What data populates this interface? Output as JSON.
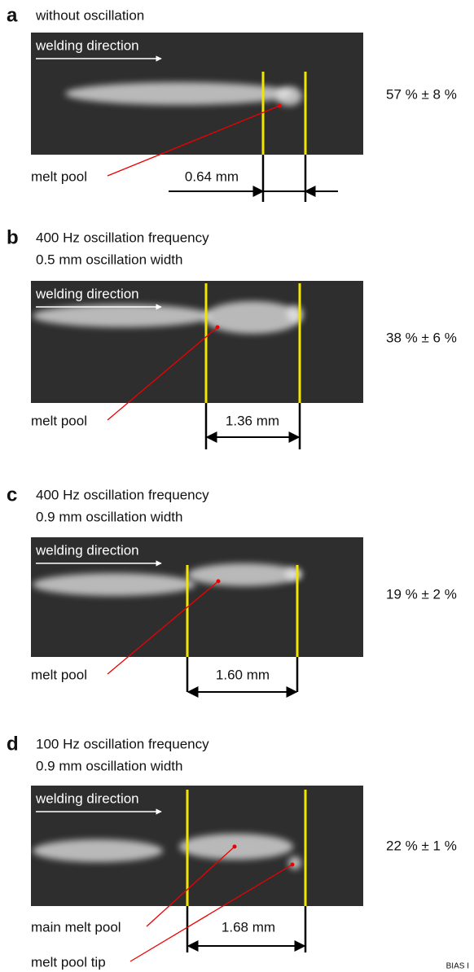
{
  "panels": [
    {
      "letter": "a",
      "title": [
        "without oscillation"
      ],
      "direction_label": "welding direction",
      "labels": [
        "melt pool"
      ],
      "measurement": "0.64 mm",
      "ratio": "57 % ± 8 %"
    },
    {
      "letter": "b",
      "title": [
        "400 Hz oscillation frequency",
        "0.5 mm oscillation width"
      ],
      "direction_label": "welding direction",
      "labels": [
        "melt pool"
      ],
      "measurement": "1.36 mm",
      "ratio": "38 % ± 6 %"
    },
    {
      "letter": "c",
      "title": [
        "400 Hz oscillation frequency",
        "0.9 mm oscillation width"
      ],
      "direction_label": "welding direction",
      "labels": [
        "melt pool"
      ],
      "measurement": "1.60 mm",
      "ratio": "19 % ± 2 %"
    },
    {
      "letter": "d",
      "title": [
        "100 Hz oscillation frequency",
        "0.9 mm oscillation width"
      ],
      "direction_label": "welding direction",
      "labels": [
        "main melt pool",
        "melt pool tip"
      ],
      "measurement": "1.68 mm",
      "ratio": "22 % ± 1 %"
    }
  ],
  "footer": "BIAS I"
}
